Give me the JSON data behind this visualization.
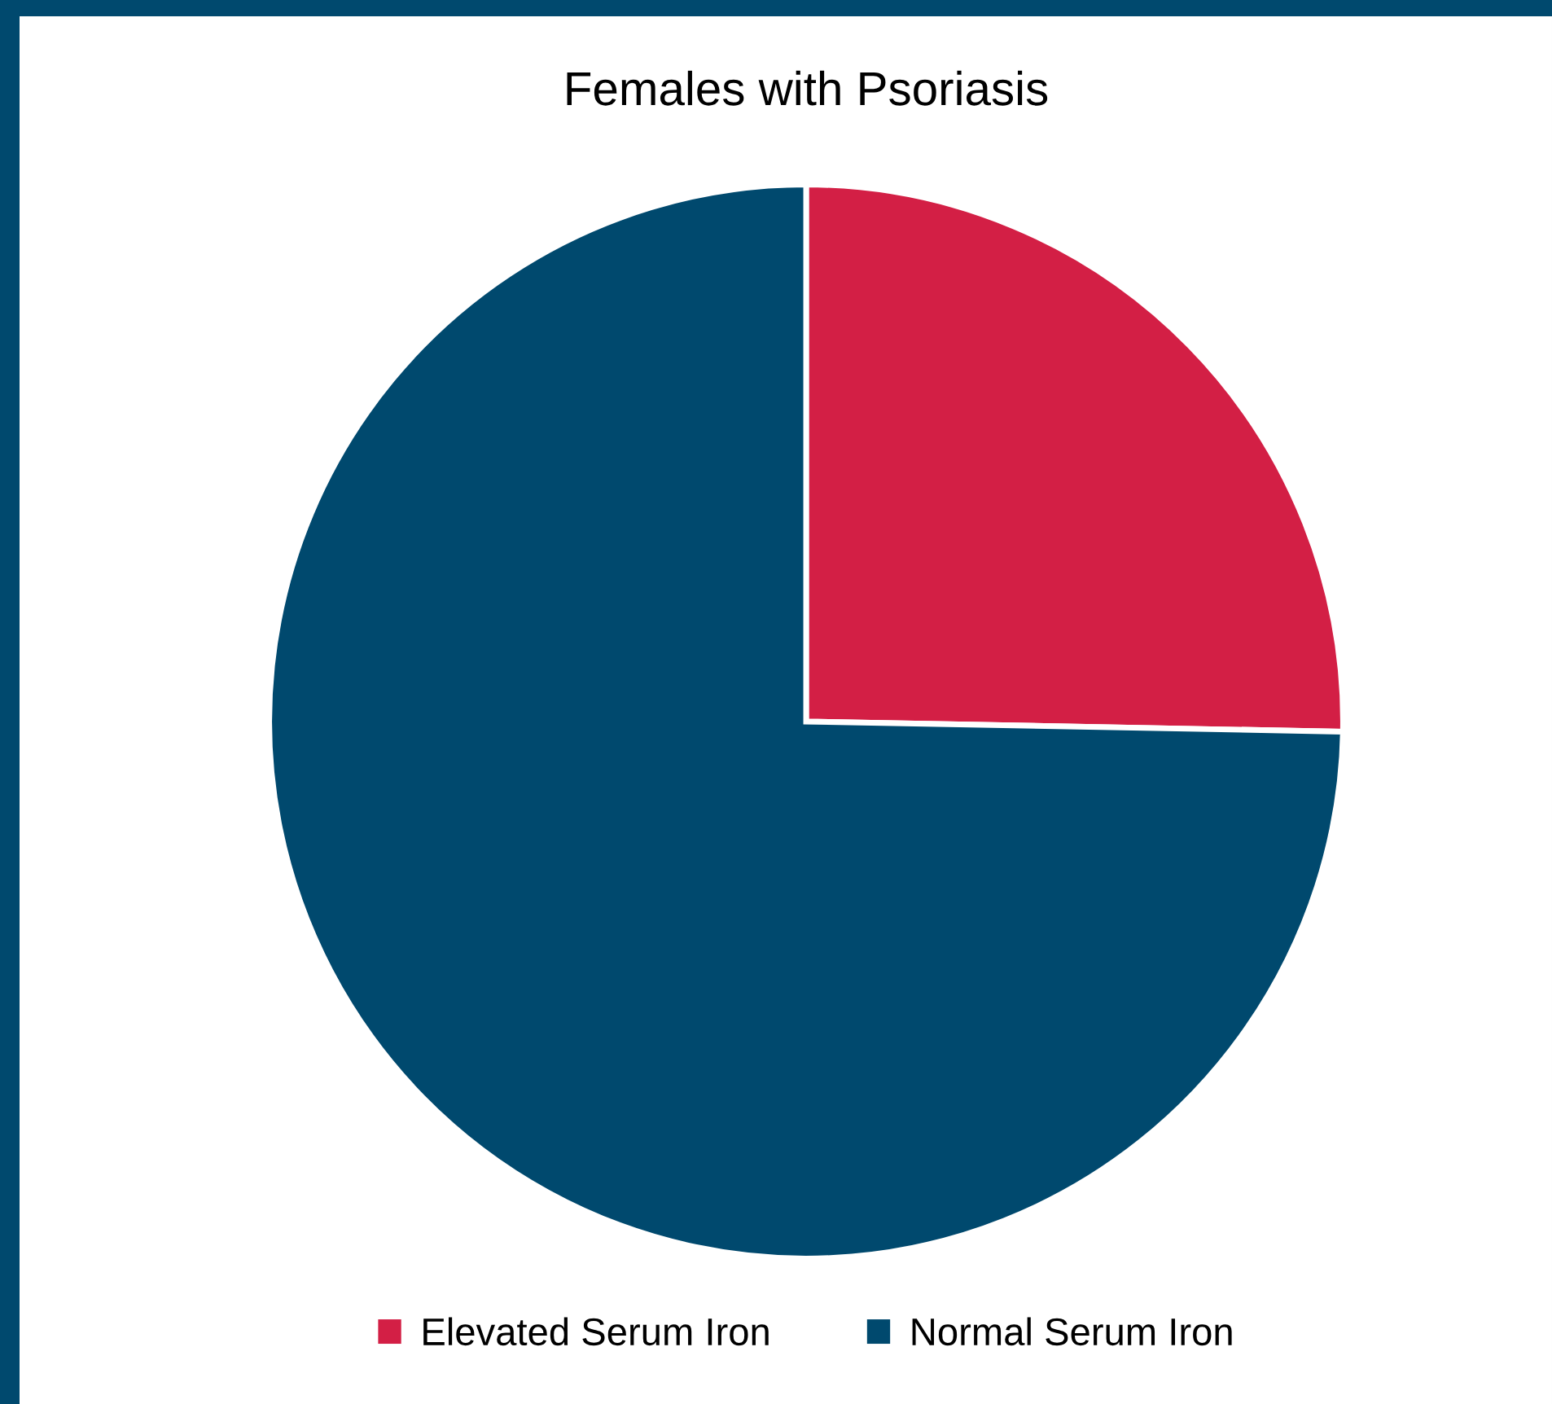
{
  "chart_data": {
    "type": "pie",
    "title": "Females with Psoriasis",
    "categories": [
      "Elevated Serum Iron",
      "Normal Serum Iron"
    ],
    "values": [
      25.3,
      74.7
    ],
    "colors": [
      "#d31f45",
      "#00496e"
    ],
    "legend": "bottom"
  }
}
